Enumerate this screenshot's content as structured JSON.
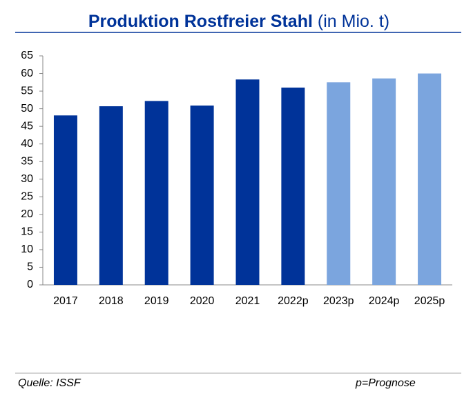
{
  "chart_data": {
    "type": "bar",
    "title": "Produktion Rostfreier Stahl",
    "title_unit": "(in Mio. t)",
    "categories": [
      "2017",
      "2018",
      "2019",
      "2020",
      "2021",
      "2022p",
      "2023p",
      "2024p",
      "2025p"
    ],
    "values": [
      48.1,
      50.7,
      52.2,
      50.9,
      58.3,
      56,
      57.5,
      58.6,
      60
    ],
    "colors": [
      "#003399",
      "#003399",
      "#003399",
      "#003399",
      "#003399",
      "#003399",
      "#7ba5de",
      "#7ba5de",
      "#7ba5de"
    ],
    "ylim": [
      0,
      65
    ],
    "yticks": [
      0,
      5,
      10,
      15,
      20,
      25,
      30,
      35,
      40,
      45,
      50,
      55,
      60,
      65
    ],
    "grid": false,
    "source": "Quelle: ISSF",
    "note": "p=Prognose"
  }
}
